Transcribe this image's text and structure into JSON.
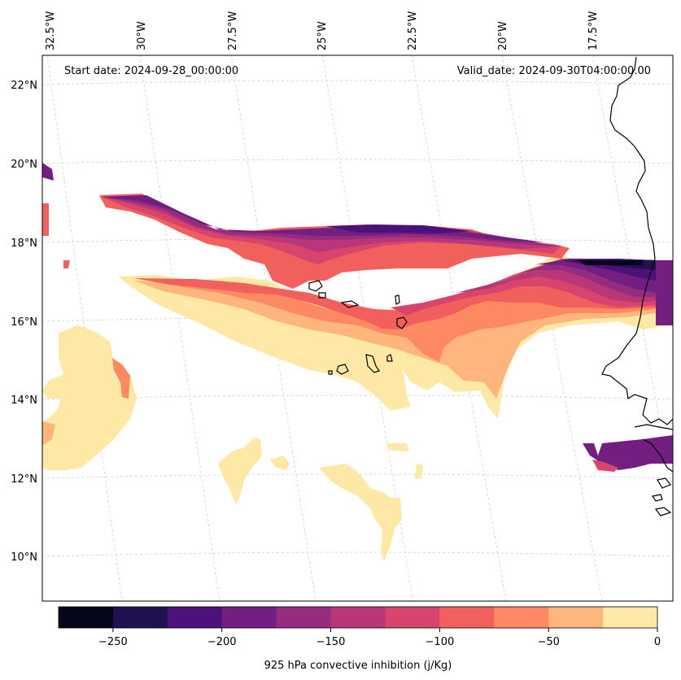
{
  "map": {
    "start_date": "Start date: 2024-09-28_00:00:00",
    "valid_date": "Valid_date: 2024-09-30T04:00:00.00",
    "lon_labels": [
      "32.5°W",
      "30°W",
      "27.5°W",
      "25°W",
      "22.5°W",
      "20°W",
      "17.5°W"
    ],
    "lat_labels": [
      "22°N",
      "20°N",
      "18°N",
      "16°N",
      "14°N",
      "12°N",
      "10°N"
    ]
  },
  "colorbar": {
    "label": "925 hPa convective inhibition (j/Kg)",
    "tick_labels": [
      "−250",
      "−200",
      "−150",
      "−100",
      "−50",
      "0"
    ],
    "range": [
      -275,
      0
    ],
    "levels": [
      -275,
      -250,
      -225,
      -200,
      -175,
      -150,
      -125,
      -100,
      -75,
      -50,
      -25,
      0
    ],
    "colors": [
      "#06051a",
      "#221150",
      "#4d117b",
      "#721f81",
      "#962c80",
      "#b73779",
      "#d8456c",
      "#f1605d",
      "#fc8961",
      "#feb67c",
      "#fde8a5"
    ]
  }
}
